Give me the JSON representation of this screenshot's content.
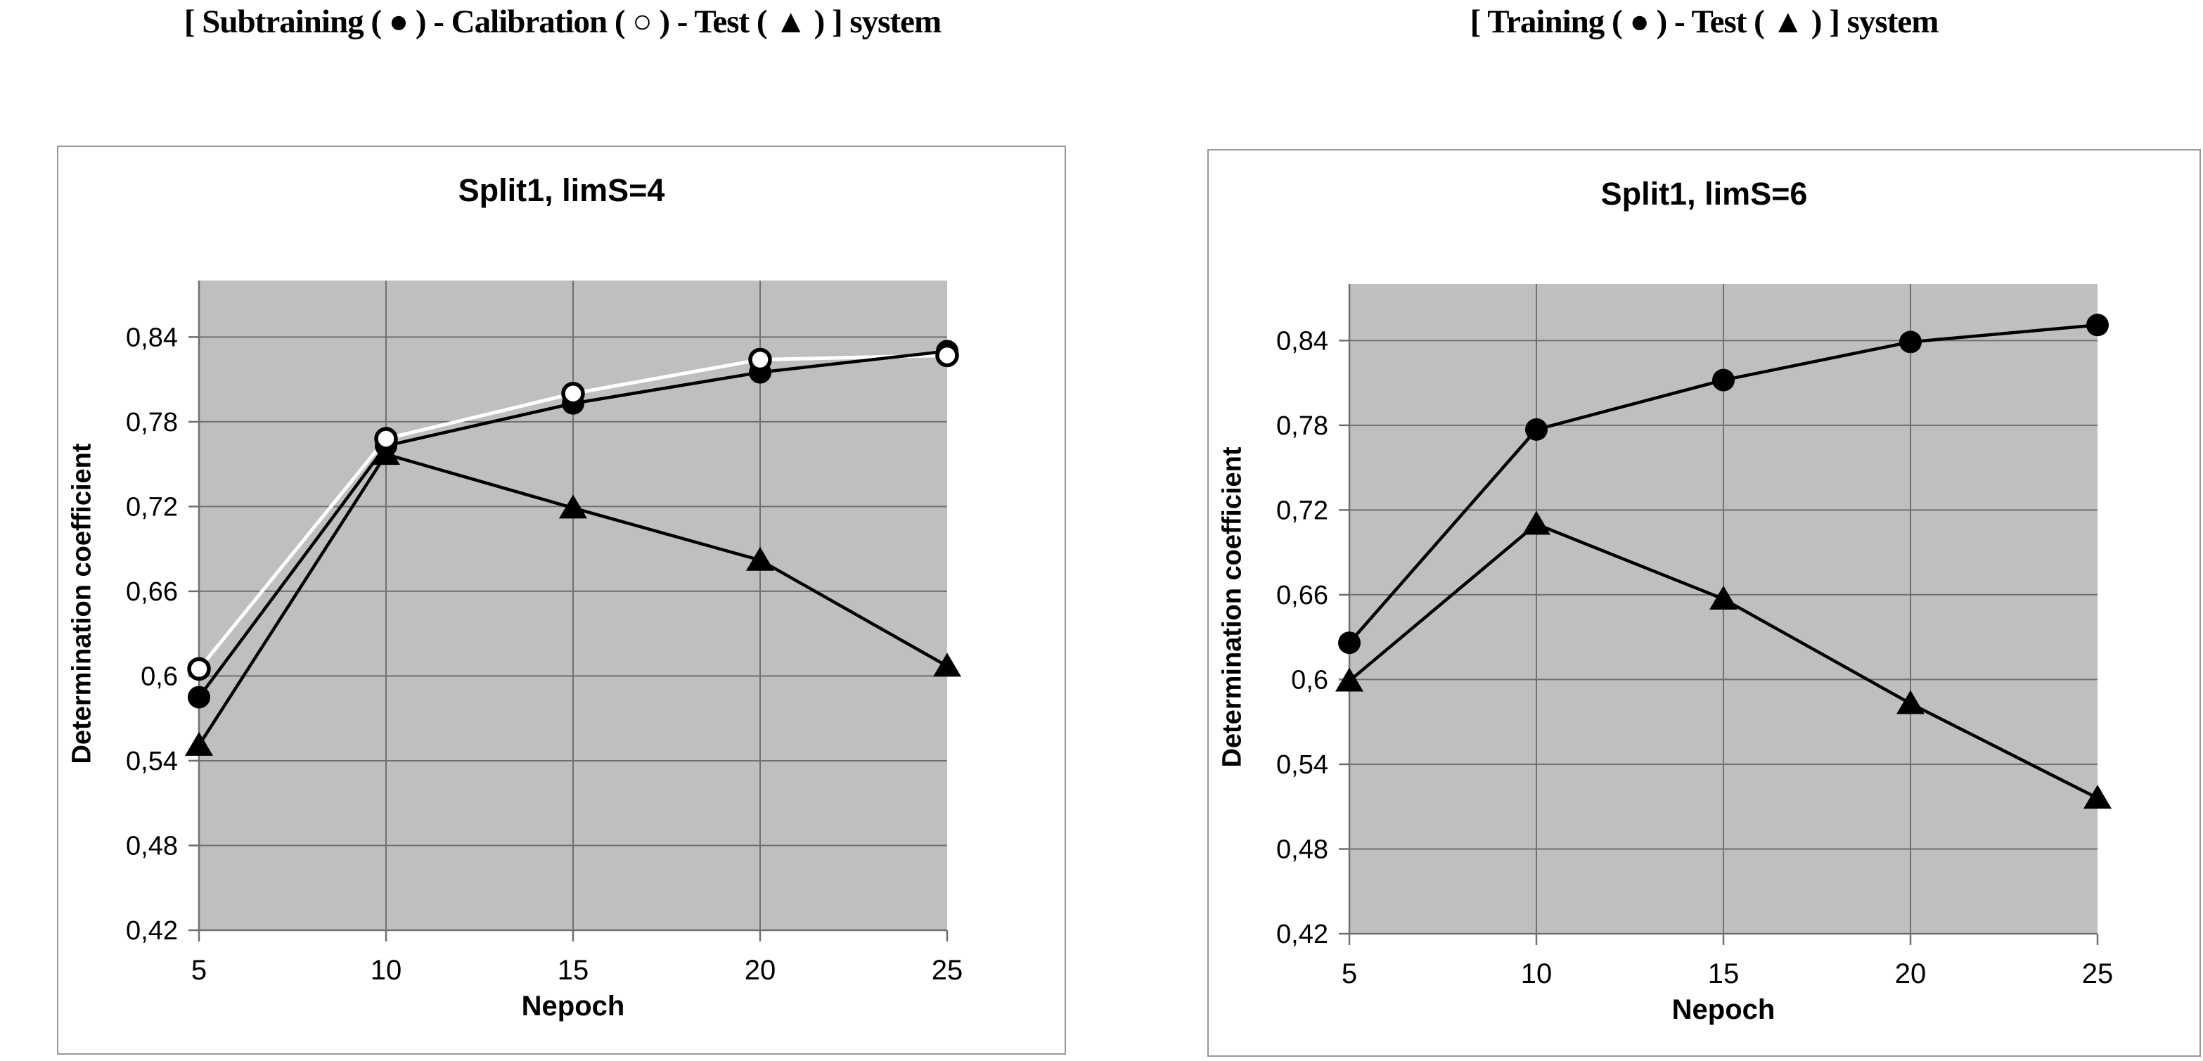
{
  "headers": {
    "left": "[ Subtraining ( ● ) - Calibration ( ○ ) - Test ( ▲ ) ] system",
    "right": "[ Training ( ● ) - Test ( ▲ ) ] system"
  },
  "colors": {
    "plot_bg": "#bfbfbf",
    "gridline": "#707070",
    "axis": "#707070",
    "series_black": "#000000",
    "series_white": "#ffffff",
    "panel_border": "#989898",
    "text": "#000000"
  },
  "chart_data": [
    {
      "type": "line",
      "title": "Split1, limS=4",
      "xlabel": "Nepoch",
      "ylabel": "Determination coefficient",
      "x": [
        5,
        10,
        15,
        20,
        25
      ],
      "x_labels": [
        "5",
        "10",
        "15",
        "20",
        "25"
      ],
      "ylim": [
        0.42,
        0.88
      ],
      "yticks": [
        0.42,
        0.48,
        0.54,
        0.6,
        0.66,
        0.72,
        0.78,
        0.84
      ],
      "ytick_labels": [
        "0,42",
        "0,48",
        "0,54",
        "0,6",
        "0,66",
        "0,72",
        "0,78",
        "0,84"
      ],
      "grid_y": [
        0.48,
        0.54,
        0.6,
        0.66,
        0.72,
        0.78,
        0.84
      ],
      "grid_x_indices": [
        1,
        2,
        3
      ],
      "grid_on": true,
      "legend_position": "none",
      "series": [
        {
          "name": "Calibration",
          "marker": "circle-open",
          "line_color": "#ffffff",
          "line_width": 5,
          "values": [
            0.605,
            0.768,
            0.8,
            0.824,
            0.827
          ]
        },
        {
          "name": "Subtraining",
          "marker": "circle-filled",
          "line_color": "#000000",
          "line_width": 4.5,
          "values": [
            0.585,
            0.763,
            0.793,
            0.815,
            0.83
          ]
        },
        {
          "name": "Test",
          "marker": "triangle-filled",
          "line_color": "#000000",
          "line_width": 4.5,
          "values": [
            0.551,
            0.757,
            0.719,
            0.682,
            0.607
          ]
        }
      ]
    },
    {
      "type": "line",
      "title": "Split1, limS=6",
      "xlabel": "Nepoch",
      "ylabel": "Determination coefficient",
      "x": [
        5,
        10,
        15,
        20,
        25
      ],
      "x_labels": [
        "5",
        "10",
        "15",
        "20",
        "25"
      ],
      "ylim": [
        0.42,
        0.88
      ],
      "yticks": [
        0.42,
        0.48,
        0.54,
        0.6,
        0.66,
        0.72,
        0.78,
        0.84
      ],
      "ytick_labels": [
        "0,42",
        "0,48",
        "0,54",
        "0,6",
        "0,66",
        "0,72",
        "0,78",
        "0,84"
      ],
      "grid_y": [
        0.48,
        0.54,
        0.6,
        0.66,
        0.72,
        0.78,
        0.84
      ],
      "grid_x_indices": [
        1,
        2,
        3
      ],
      "grid_on": true,
      "legend_position": "none",
      "series": [
        {
          "name": "Training",
          "marker": "circle-filled",
          "line_color": "#000000",
          "line_width": 4.5,
          "values": [
            0.626,
            0.777,
            0.812,
            0.839,
            0.851
          ]
        },
        {
          "name": "Test",
          "marker": "triangle-filled",
          "line_color": "#000000",
          "line_width": 4.5,
          "values": [
            0.599,
            0.71,
            0.657,
            0.583,
            0.516
          ]
        }
      ]
    }
  ]
}
